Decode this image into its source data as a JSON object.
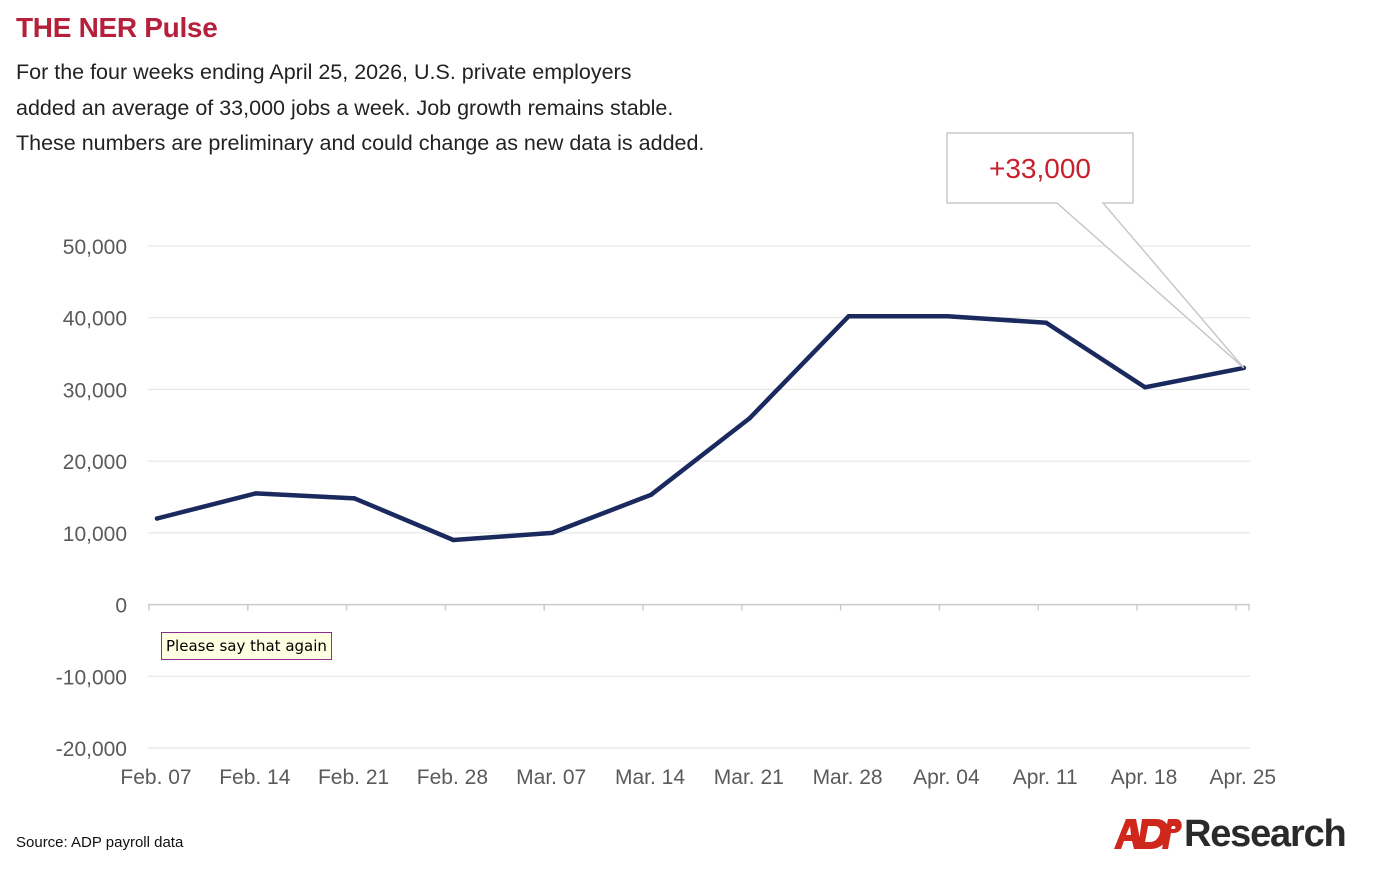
{
  "header": {
    "title": "THE NER Pulse",
    "subtitle_lines": [
      "For the four weeks ending April 25, 2026, U.S. private employers",
      "added an average of 33,000 jobs a week. Job growth remains stable.",
      "These numbers are preliminary and could change as new data is added."
    ]
  },
  "tooltip": {
    "text": "Please say that again"
  },
  "footer": {
    "source": "Source: ADP payroll data",
    "logo_mark": "ADP",
    "logo_word": "Research"
  },
  "colors": {
    "title": "#b5213b",
    "line": "#1b2a5e",
    "grid": "#e2e2e2",
    "axis": "#cccccc",
    "tick_label": "#5a5a5a",
    "callout_text": "#c8202e",
    "callout_border": "#c8c8c8",
    "logo_red": "#d0271d"
  },
  "chart_data": {
    "type": "line",
    "categories": [
      "Feb. 07",
      "Feb. 14",
      "Feb. 21",
      "Feb. 28",
      "Mar. 07",
      "Mar. 14",
      "Mar. 21",
      "Mar. 28",
      "Apr. 04",
      "Apr. 11",
      "Apr. 18",
      "Apr. 25"
    ],
    "series": [
      {
        "values": [
          12000,
          15500,
          14800,
          9000,
          10000,
          15300,
          26000,
          40200,
          40200,
          39300,
          30300,
          33000
        ]
      }
    ],
    "y_ticks": [
      50000,
      40000,
      30000,
      20000,
      10000,
      0,
      -10000,
      -20000
    ],
    "y_tick_labels": [
      "50,000",
      "40,000",
      "30,000",
      "20,000",
      "10,000",
      "0",
      "-10,000",
      "-20,000"
    ],
    "ylim": [
      -20000,
      50000
    ],
    "grid": true,
    "annotation": {
      "text": "+33,000",
      "category": "Apr. 25",
      "value": 33000
    }
  }
}
